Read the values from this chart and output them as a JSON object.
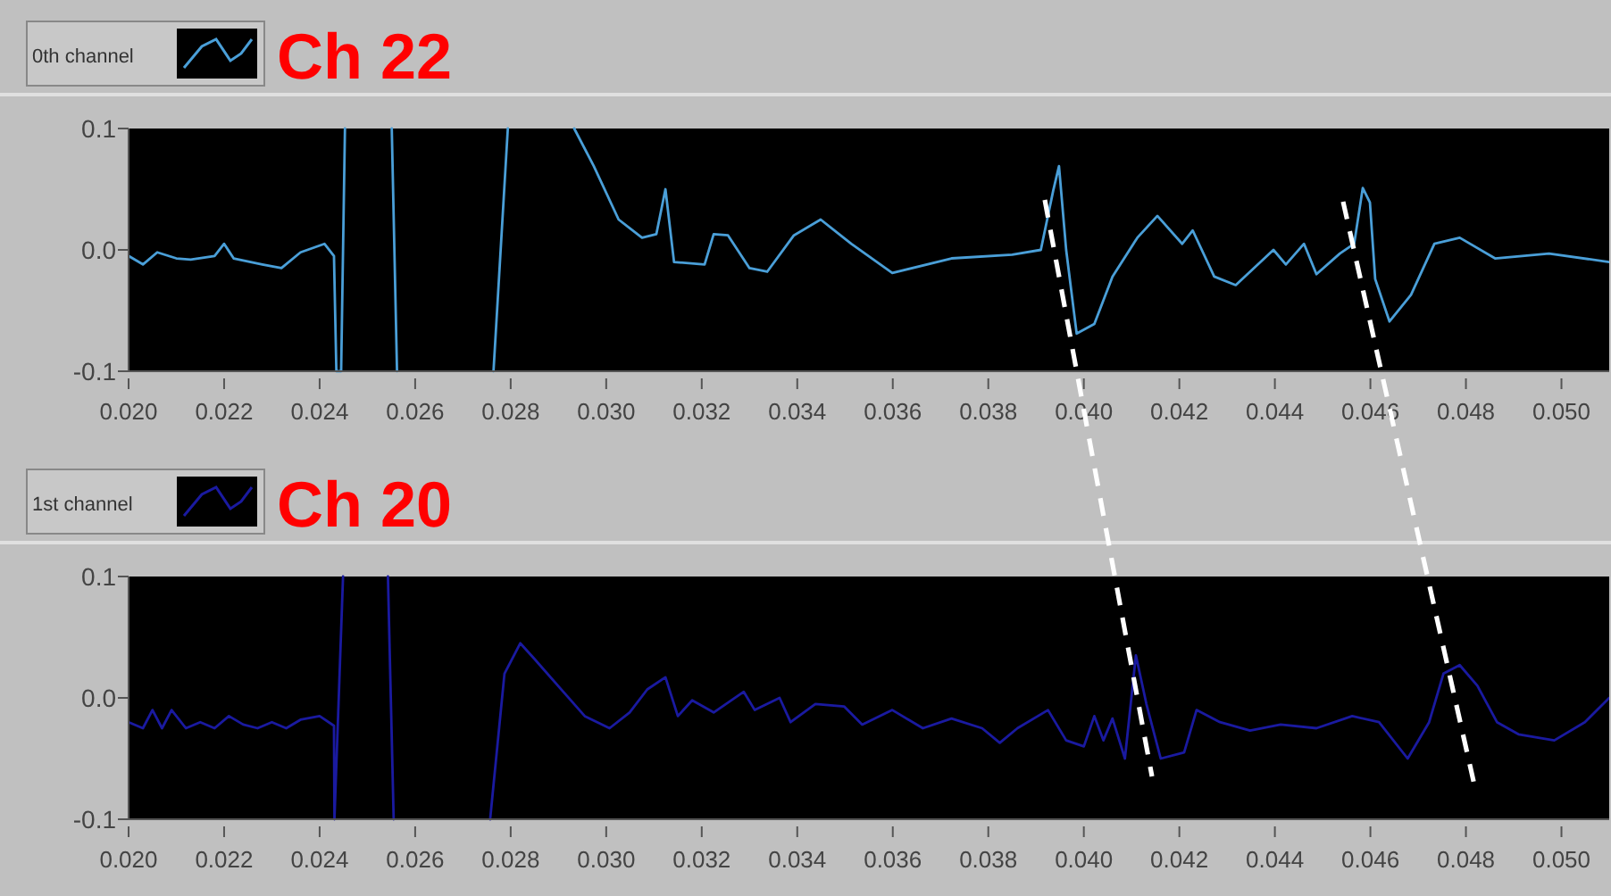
{
  "chart_data": [
    {
      "type": "line",
      "title": "Ch 22",
      "legend": "top left",
      "xlim": [
        0.02,
        0.051
      ],
      "ylim": [
        -0.1,
        0.1
      ],
      "xticks": [
        {
          "value": 0.02,
          "label": "0.020"
        },
        {
          "value": 0.022,
          "label": "0.022"
        },
        {
          "value": 0.024,
          "label": "0.024"
        },
        {
          "value": 0.026,
          "label": "0.026"
        },
        {
          "value": 0.028,
          "label": "0.028"
        },
        {
          "value": 0.03,
          "label": "0.030"
        },
        {
          "value": 0.032,
          "label": "0.032"
        },
        {
          "value": 0.034,
          "label": "0.034"
        },
        {
          "value": 0.036,
          "label": "0.036"
        },
        {
          "value": 0.038,
          "label": "0.038"
        },
        {
          "value": 0.04,
          "label": "0.040"
        },
        {
          "value": 0.042,
          "label": "0.042"
        },
        {
          "value": 0.044,
          "label": "0.044"
        },
        {
          "value": 0.046,
          "label": "0.046"
        },
        {
          "value": 0.048,
          "label": "0.048"
        },
        {
          "value": 0.05,
          "label": "0.050"
        }
      ],
      "yticks": [
        {
          "value": -0.1,
          "label": "-0.1"
        },
        {
          "value": 0,
          "label": "0.0"
        },
        {
          "value": 0.1,
          "label": "0.1"
        }
      ],
      "x": [
        0.02,
        0.0203,
        0.0206,
        0.021,
        0.0213,
        0.0218,
        0.022,
        0.0222,
        0.0228,
        0.0232,
        0.0236,
        0.0241,
        0.0243,
        0.02435,
        0.02445,
        0.02453,
        0.025,
        0.02551,
        0.02562,
        0.0266,
        0.02764,
        0.02794,
        0.0286,
        0.02933,
        0.02974,
        0.03026,
        0.03075,
        0.03105,
        0.03124,
        0.03142,
        0.03206,
        0.03225,
        0.03255,
        0.033,
        0.03337,
        0.03393,
        0.03449,
        0.03513,
        0.03599,
        0.03723,
        0.0385,
        0.0391,
        0.03936,
        0.03948,
        0.03963,
        0.03985,
        0.04022,
        0.0406,
        0.04112,
        0.04154,
        0.04206,
        0.04228,
        0.04273,
        0.04318,
        0.04397,
        0.04423,
        0.04461,
        0.04487,
        0.04536,
        0.04566,
        0.04584,
        0.04599,
        0.0461,
        0.0464,
        0.04685,
        0.04734,
        0.04787,
        0.04861,
        0.04974,
        0.051
      ],
      "series": [
        {
          "name": "0th channel",
          "color": "#4a9fd8",
          "values": [
            -0.005,
            -0.012,
            -0.002,
            -0.007,
            -0.008,
            -0.005,
            0.005,
            -0.007,
            -0.012,
            -0.015,
            -0.002,
            0.005,
            -0.005,
            -0.1,
            -0.1,
            0.1,
            null,
            0.1,
            -0.1,
            null,
            -0.1,
            0.1,
            null,
            0.1,
            0.069,
            0.025,
            0.01,
            0.013,
            0.05,
            -0.01,
            -0.012,
            0.013,
            0.012,
            -0.015,
            -0.018,
            0.012,
            0.025,
            0.005,
            -0.019,
            -0.007,
            -0.004,
            0,
            0.049,
            0.069,
            0,
            -0.069,
            -0.061,
            -0.022,
            0.01,
            0.028,
            0.005,
            0.016,
            -0.022,
            -0.029,
            0,
            -0.012,
            0.005,
            -0.02,
            -0.003,
            0.005,
            0.051,
            0.039,
            -0.024,
            -0.059,
            -0.037,
            0.005,
            0.01,
            -0.007,
            -0.003,
            -0.01
          ]
        }
      ]
    },
    {
      "type": "line",
      "title": "Ch 20",
      "legend": "top left",
      "xlim": [
        0.02,
        0.051
      ],
      "ylim": [
        -0.1,
        0.1
      ],
      "xticks": [
        {
          "value": 0.02,
          "label": "0.020"
        },
        {
          "value": 0.022,
          "label": "0.022"
        },
        {
          "value": 0.024,
          "label": "0.024"
        },
        {
          "value": 0.026,
          "label": "0.026"
        },
        {
          "value": 0.028,
          "label": "0.028"
        },
        {
          "value": 0.03,
          "label": "0.030"
        },
        {
          "value": 0.032,
          "label": "0.032"
        },
        {
          "value": 0.034,
          "label": "0.034"
        },
        {
          "value": 0.036,
          "label": "0.036"
        },
        {
          "value": 0.038,
          "label": "0.038"
        },
        {
          "value": 0.04,
          "label": "0.040"
        },
        {
          "value": 0.042,
          "label": "0.042"
        },
        {
          "value": 0.044,
          "label": "0.044"
        },
        {
          "value": 0.046,
          "label": "0.046"
        },
        {
          "value": 0.048,
          "label": "0.048"
        },
        {
          "value": 0.05,
          "label": "0.050"
        }
      ],
      "yticks": [
        {
          "value": -0.1,
          "label": "-0.1"
        },
        {
          "value": 0,
          "label": "0.0"
        },
        {
          "value": 0.1,
          "label": "0.1"
        }
      ],
      "x": [
        0.02,
        0.0203,
        0.0205,
        0.0207,
        0.0209,
        0.0212,
        0.0215,
        0.0218,
        0.0221,
        0.0224,
        0.0227,
        0.023,
        0.0233,
        0.0236,
        0.024,
        0.0243,
        0.02431,
        0.02449,
        0.025,
        0.02543,
        0.02555,
        0.0266,
        0.02757,
        0.02787,
        0.0282,
        0.0285,
        0.02899,
        0.02955,
        0.03007,
        0.03049,
        0.03086,
        0.03124,
        0.0315,
        0.0318,
        0.03225,
        0.03288,
        0.03311,
        0.03363,
        0.03386,
        0.03438,
        0.03498,
        0.03536,
        0.03599,
        0.03663,
        0.03723,
        0.03787,
        0.03824,
        0.03861,
        0.03925,
        0.03963,
        0.04,
        0.04022,
        0.04041,
        0.0406,
        0.04086,
        0.04109,
        0.04131,
        0.04161,
        0.0421,
        0.04236,
        0.04285,
        0.04348,
        0.04412,
        0.04487,
        0.04562,
        0.04618,
        0.04678,
        0.04723,
        0.04753,
        0.04787,
        0.04824,
        0.04865,
        0.0491,
        0.04985,
        0.05049,
        0.051
      ],
      "series": [
        {
          "name": "1st channel",
          "color": "#1a1aa0",
          "values": [
            -0.02,
            -0.025,
            -0.01,
            -0.025,
            -0.01,
            -0.025,
            -0.02,
            -0.025,
            -0.015,
            -0.022,
            -0.025,
            -0.02,
            -0.025,
            -0.018,
            -0.015,
            -0.023,
            -0.1,
            0.1,
            null,
            0.1,
            -0.1,
            null,
            -0.1,
            0.02,
            0.045,
            0.032,
            0.01,
            -0.015,
            -0.025,
            -0.012,
            0.007,
            0.017,
            -0.015,
            -0.002,
            -0.012,
            0.005,
            -0.01,
            0,
            -0.02,
            -0.005,
            -0.007,
            -0.022,
            -0.01,
            -0.025,
            -0.017,
            -0.025,
            -0.037,
            -0.025,
            -0.01,
            -0.035,
            -0.04,
            -0.015,
            -0.035,
            -0.017,
            -0.05,
            0.035,
            -0.005,
            -0.05,
            -0.045,
            -0.01,
            -0.02,
            -0.027,
            -0.022,
            -0.025,
            -0.015,
            -0.02,
            -0.05,
            -0.02,
            0.02,
            0.027,
            0.01,
            -0.02,
            -0.03,
            -0.035,
            -0.02,
            0
          ]
        }
      ]
    }
  ]
}
